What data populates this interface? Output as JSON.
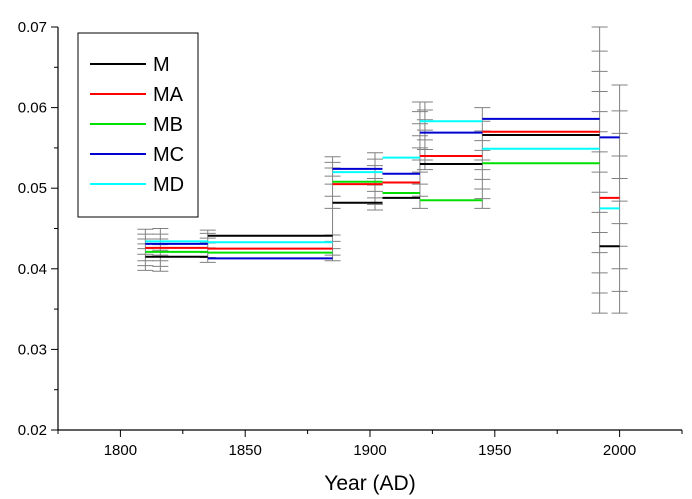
{
  "chart_data": {
    "type": "line",
    "title": "",
    "xlabel": "Year (AD)",
    "ylabel": "",
    "xlim": [
      1775,
      2025
    ],
    "ylim": [
      0.02,
      0.07
    ],
    "x_ticks": [
      1800,
      1850,
      1900,
      1950,
      2000
    ],
    "x_tick_labels": [
      "1800",
      "1850",
      "1900",
      "1950",
      "2000"
    ],
    "y_ticks": [
      0.02,
      0.03,
      0.04,
      0.05,
      0.06,
      0.07
    ],
    "y_tick_labels": [
      "0.02",
      "0.03",
      "0.04",
      "0.05",
      "0.06",
      "0.07"
    ],
    "legend_position": "top-left",
    "grid": false,
    "series": [
      {
        "name": "M",
        "color": "#000000",
        "segments": [
          {
            "x": [
              1810,
              1835
            ],
            "y": 0.0415
          },
          {
            "x": [
              1835,
              1885
            ],
            "y": 0.0441
          },
          {
            "x": [
              1885,
              1905
            ],
            "y": 0.0482
          },
          {
            "x": [
              1905,
              1920
            ],
            "y": 0.0488
          },
          {
            "x": [
              1920,
              1945
            ],
            "y": 0.053
          },
          {
            "x": [
              1945,
              1992
            ],
            "y": 0.0566
          },
          {
            "x": [
              1992,
              2000
            ],
            "y": 0.0428
          }
        ]
      },
      {
        "name": "MA",
        "color": "#ff0000",
        "segments": [
          {
            "x": [
              1810,
              1835
            ],
            "y": 0.0426
          },
          {
            "x": [
              1835,
              1885
            ],
            "y": 0.0425
          },
          {
            "x": [
              1885,
              1905
            ],
            "y": 0.0505
          },
          {
            "x": [
              1905,
              1920
            ],
            "y": 0.0507
          },
          {
            "x": [
              1920,
              1945
            ],
            "y": 0.054
          },
          {
            "x": [
              1945,
              1992
            ],
            "y": 0.057
          },
          {
            "x": [
              1992,
              2000
            ],
            "y": 0.0488
          }
        ]
      },
      {
        "name": "MB",
        "color": "#00e000",
        "segments": [
          {
            "x": [
              1810,
              1835
            ],
            "y": 0.0421
          },
          {
            "x": [
              1835,
              1885
            ],
            "y": 0.042
          },
          {
            "x": [
              1885,
              1905
            ],
            "y": 0.0508
          },
          {
            "x": [
              1905,
              1920
            ],
            "y": 0.0494
          },
          {
            "x": [
              1920,
              1945
            ],
            "y": 0.0485
          },
          {
            "x": [
              1945,
              1992
            ],
            "y": 0.0531
          }
        ]
      },
      {
        "name": "MC",
        "color": "#0000d0",
        "segments": [
          {
            "x": [
              1810,
              1835
            ],
            "y": 0.0431
          },
          {
            "x": [
              1835,
              1885
            ],
            "y": 0.0413
          },
          {
            "x": [
              1885,
              1905
            ],
            "y": 0.0524
          },
          {
            "x": [
              1905,
              1920
            ],
            "y": 0.0518
          },
          {
            "x": [
              1920,
              1945
            ],
            "y": 0.0569
          },
          {
            "x": [
              1945,
              1992
            ],
            "y": 0.0586
          },
          {
            "x": [
              1992,
              2000
            ],
            "y": 0.0563
          }
        ]
      },
      {
        "name": "MD",
        "color": "#00ffff",
        "segments": [
          {
            "x": [
              1810,
              1835
            ],
            "y": 0.0434
          },
          {
            "x": [
              1835,
              1885
            ],
            "y": 0.0433
          },
          {
            "x": [
              1885,
              1905
            ],
            "y": 0.052
          },
          {
            "x": [
              1905,
              1920
            ],
            "y": 0.0538
          },
          {
            "x": [
              1920,
              1945
            ],
            "y": 0.0583
          },
          {
            "x": [
              1945,
              1992
            ],
            "y": 0.0549
          },
          {
            "x": [
              1992,
              2000
            ],
            "y": 0.0475
          }
        ]
      }
    ],
    "error_bars": {
      "color": "#808080",
      "groups": [
        {
          "x": 1810,
          "y_min": 0.0398,
          "y_max": 0.0449,
          "ticks": [
            0.0398,
            0.0404,
            0.041,
            0.0418,
            0.0425,
            0.0431,
            0.0437,
            0.0443,
            0.0449
          ]
        },
        {
          "x": 1816,
          "y_min": 0.0397,
          "y_max": 0.045,
          "ticks": [
            0.0397,
            0.0403,
            0.041,
            0.0417,
            0.0423,
            0.043,
            0.0437,
            0.0443,
            0.045
          ]
        },
        {
          "x": 1835,
          "y_min": 0.0408,
          "y_max": 0.0448,
          "ticks": [
            0.0408,
            0.0414,
            0.042,
            0.0426,
            0.0432,
            0.0438,
            0.0444,
            0.0448
          ]
        },
        {
          "x": 1885,
          "y_min": 0.041,
          "y_max": 0.0539,
          "ticks": [
            0.041,
            0.0417,
            0.0425,
            0.0434,
            0.0442,
            0.0475,
            0.049,
            0.0505,
            0.0515,
            0.0525,
            0.0532,
            0.0539
          ]
        },
        {
          "x": 1902,
          "y_min": 0.0473,
          "y_max": 0.0544,
          "ticks": [
            0.0473,
            0.048,
            0.0488,
            0.0496,
            0.0504,
            0.0512,
            0.052,
            0.0528,
            0.0536,
            0.0544
          ]
        },
        {
          "x": 1920,
          "y_min": 0.0475,
          "y_max": 0.0607,
          "ticks": [
            0.0475,
            0.049,
            0.0505,
            0.052,
            0.0535,
            0.055,
            0.0565,
            0.058,
            0.0595,
            0.0607
          ]
        },
        {
          "x": 1922,
          "y_min": 0.0523,
          "y_max": 0.0607,
          "ticks": [
            0.0523,
            0.0535,
            0.0548,
            0.056,
            0.0572,
            0.0585,
            0.0597,
            0.0607
          ]
        },
        {
          "x": 1945,
          "y_min": 0.0475,
          "y_max": 0.06,
          "ticks": [
            0.0475,
            0.0487,
            0.0499,
            0.0511,
            0.0523,
            0.0535,
            0.0547,
            0.0559,
            0.0571,
            0.0583,
            0.06
          ]
        },
        {
          "x": 1992,
          "y_min": 0.0345,
          "y_max": 0.07,
          "ticks": [
            0.0345,
            0.037,
            0.0395,
            0.042,
            0.0445,
            0.047,
            0.0495,
            0.052,
            0.0545,
            0.057,
            0.0595,
            0.062,
            0.0645,
            0.067,
            0.07
          ]
        },
        {
          "x": 2000,
          "y_min": 0.0345,
          "y_max": 0.0628,
          "ticks": [
            0.0345,
            0.0372,
            0.04,
            0.0428,
            0.0456,
            0.0484,
            0.0512,
            0.054,
            0.0568,
            0.0596,
            0.0628
          ]
        }
      ]
    }
  }
}
